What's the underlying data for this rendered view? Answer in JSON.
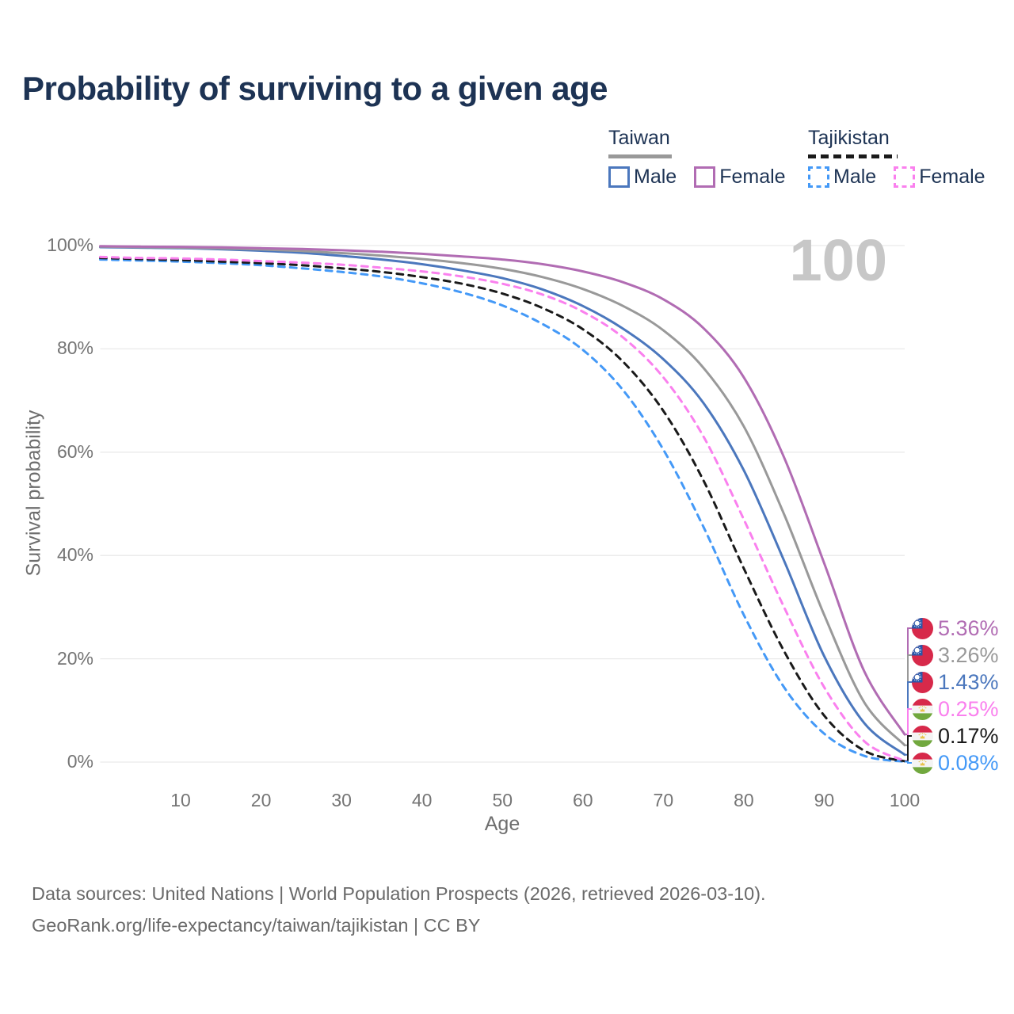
{
  "title": "Probability of surviving to a given age",
  "watermark": "100",
  "legend": {
    "groups": [
      {
        "name": "Taiwan",
        "underline_style": "solid",
        "underline_color": "#999999",
        "items": [
          {
            "label": "Male",
            "color": "#4b77bd",
            "dashed": false
          },
          {
            "label": "Female",
            "color": "#b16cb3",
            "dashed": false
          }
        ]
      },
      {
        "name": "Tajikistan",
        "underline_style": "dashed",
        "underline_color": "#1a1a1a",
        "items": [
          {
            "label": "Male",
            "color": "#4499f7",
            "dashed": true
          },
          {
            "label": "Female",
            "color": "#fa80ee",
            "dashed": true
          }
        ]
      }
    ]
  },
  "y_axis": {
    "label": "Survival probability",
    "ticks": [
      {
        "label": "0%",
        "value": 0
      },
      {
        "label": "20%",
        "value": 20
      },
      {
        "label": "40%",
        "value": 40
      },
      {
        "label": "60%",
        "value": 60
      },
      {
        "label": "80%",
        "value": 80
      },
      {
        "label": "100%",
        "value": 100
      }
    ]
  },
  "x_axis": {
    "label": "Age",
    "ticks": [
      10,
      20,
      30,
      40,
      50,
      60,
      70,
      80,
      90,
      100
    ]
  },
  "chart_data": {
    "type": "line",
    "title": "Probability of surviving to a given age",
    "xlabel": "Age",
    "ylabel": "Survival probability",
    "xlim": [
      0,
      100
    ],
    "ylim": [
      0,
      100
    ],
    "grid": "horizontal",
    "legend_position": "top-right",
    "series": [
      {
        "id": "tajikistan-male",
        "name": "Tajikistan Male",
        "country": "Tajikistan",
        "sex": "Male",
        "flag": "tj",
        "color": "#4499f7",
        "dashed": true,
        "end_value": 0.08,
        "end_label": "0.08%",
        "label_color": "#4499f7",
        "points": [
          [
            0,
            97.3
          ],
          [
            5,
            97.1
          ],
          [
            10,
            96.9
          ],
          [
            15,
            96.6
          ],
          [
            20,
            96.2
          ],
          [
            25,
            95.6
          ],
          [
            30,
            94.9
          ],
          [
            35,
            94.0
          ],
          [
            40,
            92.7
          ],
          [
            45,
            90.9
          ],
          [
            50,
            88.4
          ],
          [
            55,
            84.8
          ],
          [
            60,
            79.8
          ],
          [
            65,
            72.0
          ],
          [
            70,
            60.5
          ],
          [
            75,
            45.5
          ],
          [
            80,
            28.5
          ],
          [
            85,
            14.5
          ],
          [
            90,
            5.5
          ],
          [
            95,
            1.2
          ],
          [
            100,
            0.08
          ]
        ]
      },
      {
        "id": "tajikistan-both",
        "name": "Tajikistan Both sexes",
        "country": "Tajikistan",
        "sex": "Both",
        "flag": "tj",
        "color": "#1a1a1a",
        "dashed": true,
        "end_value": 0.17,
        "end_label": "0.17%",
        "label_color": "#1a1a1a",
        "points": [
          [
            0,
            97.6
          ],
          [
            5,
            97.4
          ],
          [
            10,
            97.2
          ],
          [
            15,
            96.9
          ],
          [
            20,
            96.6
          ],
          [
            25,
            96.2
          ],
          [
            30,
            95.6
          ],
          [
            35,
            94.9
          ],
          [
            40,
            93.9
          ],
          [
            45,
            92.6
          ],
          [
            50,
            90.7
          ],
          [
            55,
            87.9
          ],
          [
            60,
            83.8
          ],
          [
            65,
            77.5
          ],
          [
            70,
            68.0
          ],
          [
            75,
            54.5
          ],
          [
            80,
            37.5
          ],
          [
            85,
            21.5
          ],
          [
            90,
            9.0
          ],
          [
            95,
            2.2
          ],
          [
            100,
            0.17
          ]
        ]
      },
      {
        "id": "tajikistan-female",
        "name": "Tajikistan Female",
        "country": "Tajikistan",
        "sex": "Female",
        "flag": "tj",
        "color": "#fa80ee",
        "dashed": true,
        "end_value": 0.25,
        "end_label": "0.25%",
        "label_color": "#fa80ee",
        "points": [
          [
            0,
            97.8
          ],
          [
            5,
            97.6
          ],
          [
            10,
            97.5
          ],
          [
            15,
            97.3
          ],
          [
            20,
            97.0
          ],
          [
            25,
            96.7
          ],
          [
            30,
            96.3
          ],
          [
            35,
            95.7
          ],
          [
            40,
            95.0
          ],
          [
            45,
            94.0
          ],
          [
            50,
            92.6
          ],
          [
            55,
            90.5
          ],
          [
            60,
            87.2
          ],
          [
            65,
            82.2
          ],
          [
            70,
            74.5
          ],
          [
            75,
            63.0
          ],
          [
            80,
            47.0
          ],
          [
            85,
            30.0
          ],
          [
            90,
            14.5
          ],
          [
            95,
            4.0
          ],
          [
            100,
            0.25
          ]
        ]
      },
      {
        "id": "taiwan-male",
        "name": "Taiwan Male",
        "country": "Taiwan",
        "sex": "Male",
        "flag": "tw",
        "color": "#4b77bd",
        "dashed": false,
        "end_value": 1.43,
        "end_label": "1.43%",
        "label_color": "#4b77bd",
        "points": [
          [
            0,
            99.7
          ],
          [
            5,
            99.6
          ],
          [
            10,
            99.5
          ],
          [
            15,
            99.3
          ],
          [
            20,
            99.0
          ],
          [
            25,
            98.6
          ],
          [
            30,
            98.0
          ],
          [
            35,
            97.3
          ],
          [
            40,
            96.4
          ],
          [
            45,
            95.2
          ],
          [
            50,
            93.7
          ],
          [
            55,
            91.5
          ],
          [
            60,
            88.3
          ],
          [
            65,
            83.9
          ],
          [
            70,
            78.0
          ],
          [
            75,
            69.5
          ],
          [
            80,
            56.5
          ],
          [
            85,
            39.0
          ],
          [
            90,
            20.5
          ],
          [
            95,
            7.5
          ],
          [
            100,
            1.43
          ]
        ]
      },
      {
        "id": "taiwan-both",
        "name": "Taiwan Both sexes",
        "country": "Taiwan",
        "sex": "Both",
        "flag": "tw",
        "color": "#999999",
        "dashed": false,
        "end_value": 3.26,
        "end_label": "3.26%",
        "label_color": "#999999",
        "points": [
          [
            0,
            99.8
          ],
          [
            5,
            99.7
          ],
          [
            10,
            99.6
          ],
          [
            15,
            99.45
          ],
          [
            20,
            99.25
          ],
          [
            25,
            98.95
          ],
          [
            30,
            98.55
          ],
          [
            35,
            98.05
          ],
          [
            40,
            97.4
          ],
          [
            45,
            96.6
          ],
          [
            50,
            95.5
          ],
          [
            55,
            93.9
          ],
          [
            60,
            91.6
          ],
          [
            65,
            88.3
          ],
          [
            70,
            83.6
          ],
          [
            75,
            76.3
          ],
          [
            80,
            65.0
          ],
          [
            85,
            48.0
          ],
          [
            90,
            28.5
          ],
          [
            95,
            11.5
          ],
          [
            100,
            3.26
          ]
        ]
      },
      {
        "id": "taiwan-female",
        "name": "Taiwan Female",
        "country": "Taiwan",
        "sex": "Female",
        "flag": "tw",
        "color": "#b16cb3",
        "dashed": false,
        "end_value": 5.36,
        "end_label": "5.36%",
        "label_color": "#b16cb3",
        "points": [
          [
            0,
            99.9
          ],
          [
            5,
            99.8
          ],
          [
            10,
            99.75
          ],
          [
            15,
            99.65
          ],
          [
            20,
            99.5
          ],
          [
            25,
            99.35
          ],
          [
            30,
            99.1
          ],
          [
            35,
            98.8
          ],
          [
            40,
            98.4
          ],
          [
            45,
            97.9
          ],
          [
            50,
            97.3
          ],
          [
            55,
            96.4
          ],
          [
            60,
            95.0
          ],
          [
            65,
            92.9
          ],
          [
            70,
            89.6
          ],
          [
            75,
            84.0
          ],
          [
            80,
            74.5
          ],
          [
            85,
            59.0
          ],
          [
            90,
            38.5
          ],
          [
            95,
            17.5
          ],
          [
            100,
            5.36
          ]
        ]
      }
    ]
  },
  "footer": {
    "line1": "Data sources: United Nations | World Population Prospects (2026, retrieved 2026-03-10).",
    "line2": "GeoRank.org/life-expectancy/taiwan/tajikistan | CC BY"
  }
}
